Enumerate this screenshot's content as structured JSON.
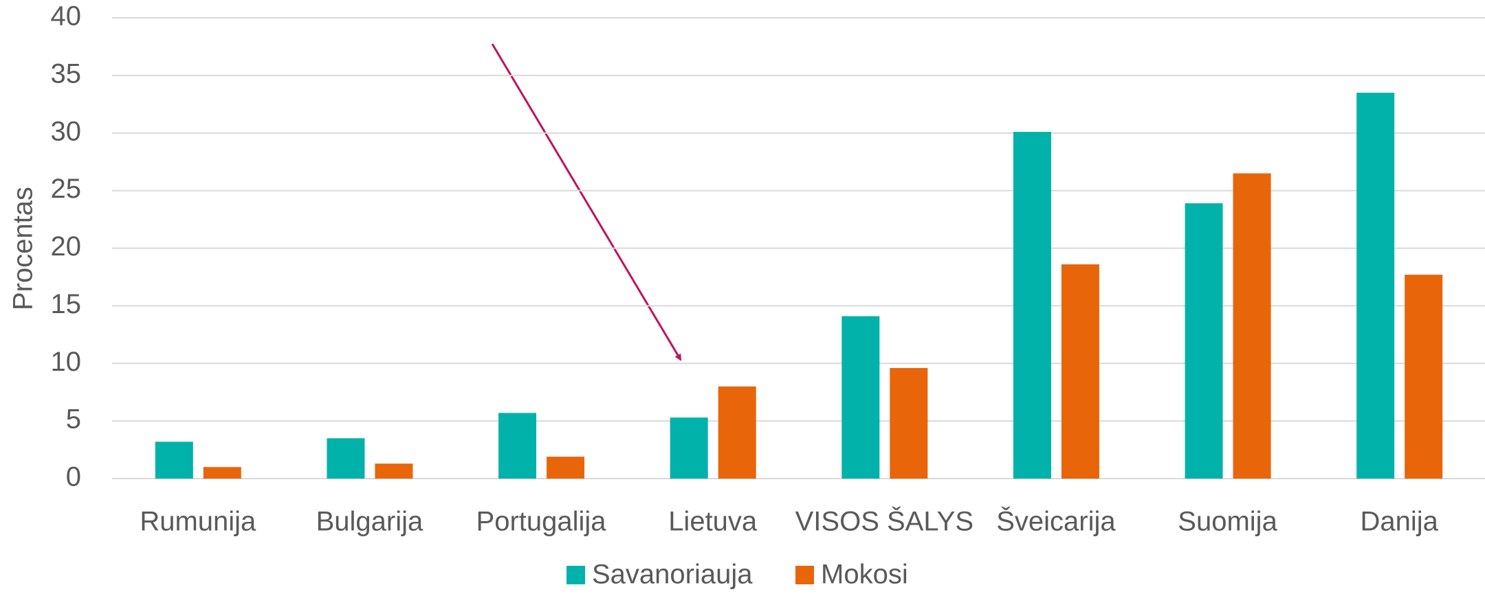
{
  "chart_data": {
    "type": "bar",
    "y_label": "Procentas",
    "categories": [
      "Rumunija",
      "Bulgarija",
      "Portugalija",
      "Lietuva",
      "VISOS ŠALYS",
      "Šveicarija",
      "Suomija",
      "Danija"
    ],
    "series": [
      {
        "name": "Savanoriauja",
        "color": "#00b2a9",
        "values": [
          3.2,
          3.5,
          5.7,
          5.3,
          14.1,
          30.1,
          23.9,
          33.5
        ]
      },
      {
        "name": "Mokosi",
        "color": "#e8650a",
        "values": [
          1.0,
          1.3,
          1.9,
          8.0,
          9.6,
          18.6,
          26.5,
          17.7
        ]
      }
    ],
    "ylim": [
      0,
      40
    ],
    "yticks": [
      0,
      5,
      10,
      15,
      20,
      25,
      30,
      35,
      40
    ],
    "grid": true,
    "legend": "bottom"
  }
}
